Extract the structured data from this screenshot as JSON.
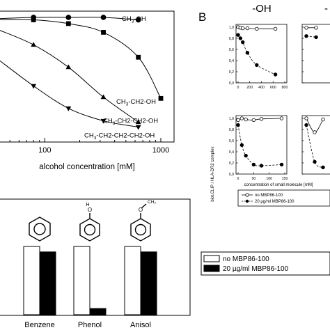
{
  "panel_b_label": "B",
  "header_labels": [
    "-OH",
    "-"
  ],
  "chart_data": [
    {
      "id": "panel-a-top",
      "type": "line",
      "xlabel": "alcohol concentration [mM]",
      "xscale": "log",
      "xlim": [
        40,
        1300
      ],
      "ylim": [
        0,
        1.05
      ],
      "x_ticks": [
        100,
        1000
      ],
      "x_tick_labels": [
        "100",
        "1000"
      ],
      "grid": false,
      "series": [
        {
          "name": "CH3-OH",
          "label_main": "CH",
          "label_sub": "3",
          "label_tail": "-OH",
          "marker": "circle",
          "x": [
            40,
            80,
            160,
            320,
            640
          ],
          "y": [
            0.99,
            1.0,
            1.0,
            1.0,
            0.98
          ]
        },
        {
          "name": "CH3-CH2-OH",
          "label_main": "CH",
          "label_sub": "3",
          "label_tail": "-CH2-OH",
          "marker": "square",
          "x": [
            40,
            80,
            160,
            320,
            640,
            1000
          ],
          "y": [
            0.98,
            0.98,
            0.95,
            0.88,
            0.68,
            0.35
          ]
        },
        {
          "name": "CH3-CH2-CH2-OH",
          "label_main": "CH",
          "label_sub": "3",
          "label_tail": "-CH2-CH2-OH",
          "marker": "triangle",
          "x": [
            40,
            80,
            160,
            320,
            640
          ],
          "y": [
            0.9,
            0.78,
            0.6,
            0.36,
            0.16
          ]
        },
        {
          "name": "CH3-CH2-CH2-CH2-OH",
          "label_main": "CH",
          "label_sub": "3",
          "label_tail": "-CH2-CH2-CH2-OH",
          "marker": "triangle-down",
          "x": [
            40,
            80,
            160,
            320,
            640
          ],
          "y": [
            0.66,
            0.45,
            0.27,
            0.17,
            0.12
          ]
        }
      ]
    },
    {
      "id": "panel-a-bottom",
      "type": "bar",
      "categories": [
        "Benzene",
        "Phenol",
        "Anisol"
      ],
      "ylim": [
        0,
        1.3
      ],
      "series": [
        {
          "name": "no MBP86-100",
          "values": [
            1.0,
            1.0,
            1.0
          ],
          "color": "#ffffff"
        },
        {
          "name": "20 µg/ml MBP86-100",
          "values": [
            0.92,
            0.09,
            0.92
          ],
          "color": "#000000"
        }
      ],
      "legend_position": "right"
    },
    {
      "id": "panel-b-small-multiples",
      "type": "line",
      "ylabel": "biot.CLIP / HLA-DR2 complex",
      "xlabel": "concentration of small molecule [mM]",
      "ylim": [
        0,
        1.05
      ],
      "y_tick_labels": [
        "0,0",
        "0,2",
        "0,4",
        "0,6",
        "0,8",
        "1,0"
      ],
      "legend": [
        "no MBP86-100",
        "20 µg/ml MBP86-100"
      ],
      "subplots": [
        {
          "position": "top-left",
          "xlim": [
            0,
            800
          ],
          "x_ticks": [
            0,
            200,
            400,
            600,
            800
          ],
          "series": [
            {
              "name": "no MBP86-100",
              "x": [
                0,
                40,
                80,
                160,
                320,
                640
              ],
              "y": [
                1.0,
                0.99,
                0.98,
                0.98,
                0.97,
                0.97
              ]
            },
            {
              "name": "20 µg/ml MBP86-100",
              "x": [
                0,
                40,
                80,
                160,
                320,
                640
              ],
              "y": [
                0.86,
                0.8,
                0.73,
                0.54,
                0.32,
                0.15
              ]
            }
          ]
        },
        {
          "position": "bottom-left",
          "xlim": [
            0,
            150
          ],
          "x_ticks": [
            0,
            50,
            100,
            150
          ],
          "series": [
            {
              "name": "no MBP86-100",
              "x": [
                0,
                12,
                25,
                50,
                75,
                140
              ],
              "y": [
                0.97,
                1.0,
                0.98,
                0.97,
                0.99,
                1.0
              ]
            },
            {
              "name": "20 µg/ml MBP86-100",
              "x": [
                0,
                12,
                25,
                50,
                75,
                140
              ],
              "y": [
                0.88,
                0.52,
                0.33,
                0.17,
                0.15,
                0.17
              ]
            }
          ]
        },
        {
          "position": "top-right-partial",
          "series": [
            {
              "name": "no MBP86-100",
              "y": [
                0.99,
                0.99
              ]
            },
            {
              "name": "20 µg/ml MBP86-100",
              "y": [
                0.84,
                0.82
              ]
            }
          ]
        },
        {
          "position": "bottom-right-partial",
          "series": [
            {
              "name": "no MBP86-100",
              "y": [
                1.0,
                0.75,
                0.98
              ]
            },
            {
              "name": "20 µg/ml MBP86-100",
              "y": [
                0.88,
                0.22,
                0.12
              ]
            }
          ]
        }
      ]
    }
  ]
}
